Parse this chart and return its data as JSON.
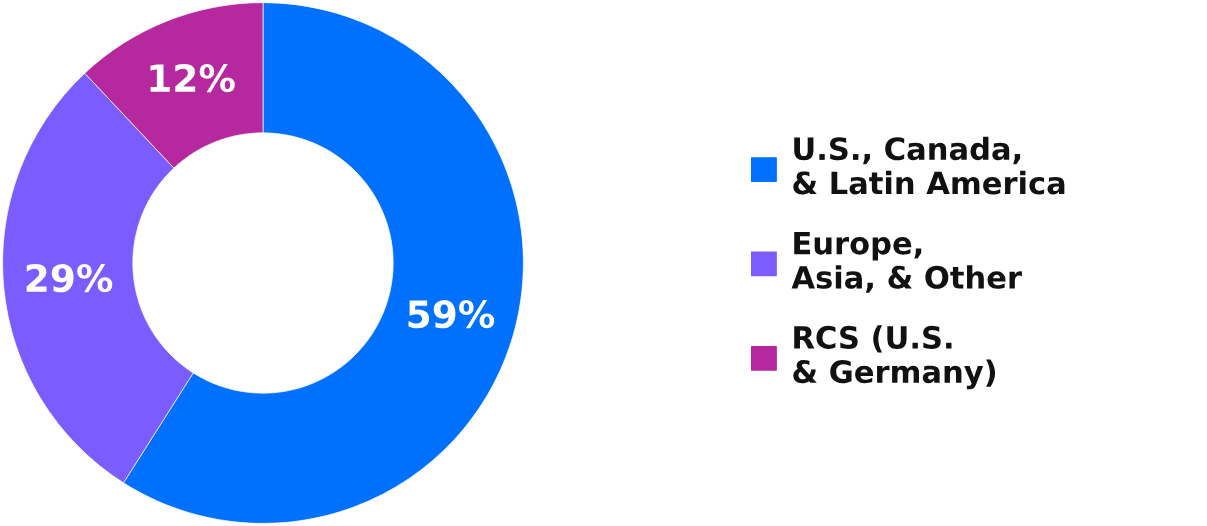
{
  "chart_data": {
    "type": "donut",
    "categories": [
      "U.S., Canada, & Latin America",
      "Europe, Asia, & Other",
      "RCS (U.S. & Germany)"
    ],
    "values": [
      59,
      29,
      12
    ],
    "colors": [
      "#0070ff",
      "#7b5cff",
      "#b5289e"
    ],
    "value_labels": [
      "59%",
      "29%",
      "12%"
    ],
    "legend": "right"
  }
}
